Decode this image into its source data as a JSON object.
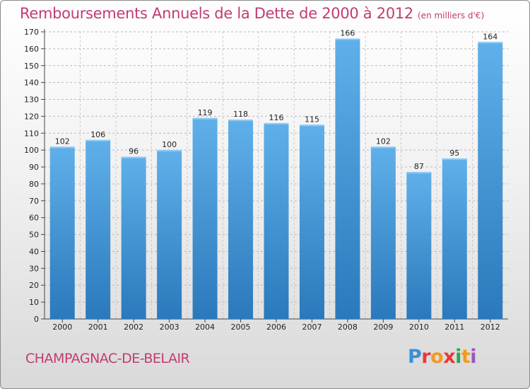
{
  "title": "Remboursements Annuels de la Dette de 2000 à 2012",
  "subtitle": "(en milliers d'€)",
  "town": "CHAMPAGNAC-DE-BELAIR",
  "logo": {
    "text": "Proxiti",
    "colors": [
      "#3a8fd6",
      "#e8383b",
      "#f29a1e",
      "#e8383b",
      "#2aa84a",
      "#f29a1e",
      "#9a57c4"
    ]
  },
  "colors": {
    "bar": "#3d94d9",
    "bar_light": "#5fb0ea",
    "bar_dark": "#2a79bc",
    "title": "#c23b73"
  },
  "chart_data": {
    "type": "bar",
    "categories": [
      "2000",
      "2001",
      "2002",
      "2003",
      "2004",
      "2005",
      "2006",
      "2007",
      "2008",
      "2009",
      "2010",
      "2011",
      "2012"
    ],
    "values": [
      102,
      106,
      96,
      100,
      119,
      118,
      116,
      115,
      166,
      102,
      87,
      95,
      164
    ],
    "value_labels": [
      "102",
      "106",
      "96",
      "100",
      "119",
      "118",
      "116",
      "115",
      "166",
      "102",
      "87",
      "95",
      "164"
    ],
    "ylim": [
      0,
      170
    ],
    "yticks": [
      "0",
      "10",
      "20",
      "30",
      "40",
      "50",
      "60",
      "70",
      "80",
      "90",
      "100",
      "110",
      "120",
      "130",
      "140",
      "150",
      "160",
      "170"
    ],
    "grid": true
  }
}
